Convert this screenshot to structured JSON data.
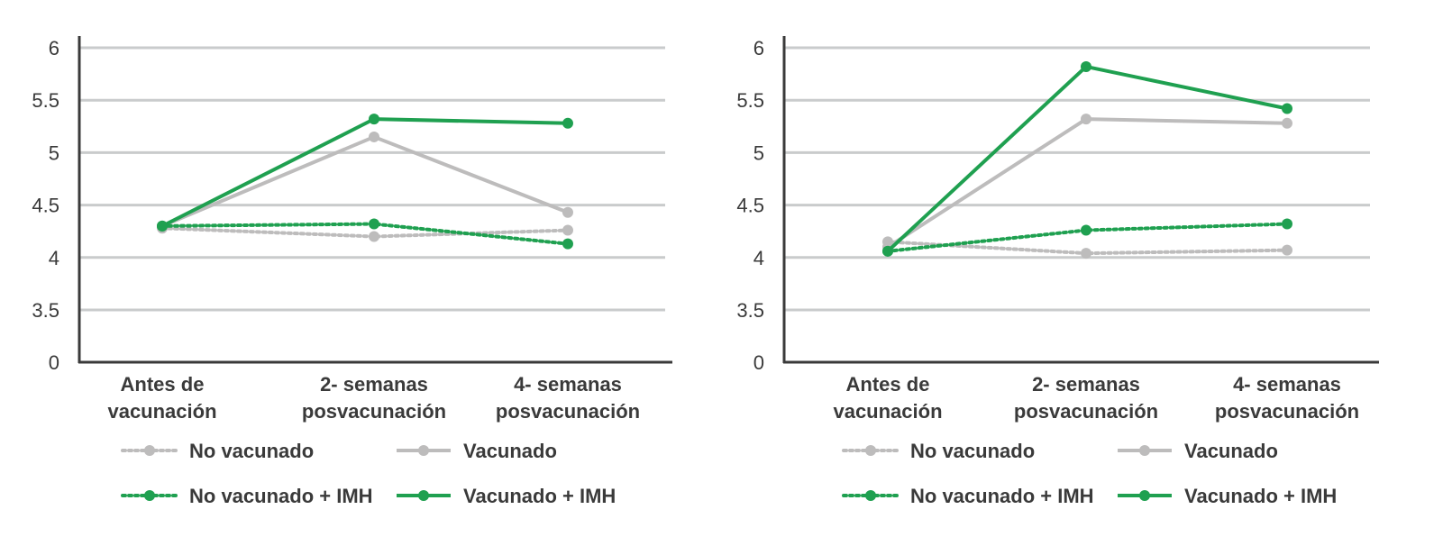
{
  "colors": {
    "gray": "#bdbcbc",
    "green": "#1fa050",
    "axis": "#3a3a3a",
    "grid": "#c9cbcc",
    "text": "#3a3a3a"
  },
  "chart_data": [
    {
      "type": "line",
      "categories": [
        [
          "Antes de",
          "vacunación"
        ],
        [
          "2- semanas",
          "posvacunación"
        ],
        [
          "4- semanas",
          "posvacunación"
        ]
      ],
      "y_ticks": [
        "0",
        "3.5",
        "4",
        "4.5",
        "5",
        "5.5",
        "6"
      ],
      "y_scale": "broken: 0, then 3.5 to 6 in steps of 0.5",
      "grid": true,
      "legend_position": "bottom",
      "series": [
        {
          "name": "No vacunado",
          "color": "gray",
          "style": "dotted",
          "values": [
            4.28,
            4.2,
            4.26
          ]
        },
        {
          "name": "Vacunado",
          "color": "gray",
          "style": "solid",
          "values": [
            4.3,
            5.15,
            4.43
          ]
        },
        {
          "name": "No vacunado + IMH",
          "color": "green",
          "style": "dotted",
          "values": [
            4.3,
            4.32,
            4.13
          ]
        },
        {
          "name": "Vacunado + IMH",
          "color": "green",
          "style": "solid",
          "values": [
            4.3,
            5.32,
            5.28
          ]
        }
      ]
    },
    {
      "type": "line",
      "categories": [
        [
          "Antes de",
          "vacunación"
        ],
        [
          "2- semanas",
          "posvacunación"
        ],
        [
          "4- semanas",
          "posvacunación"
        ]
      ],
      "y_ticks": [
        "0",
        "3.5",
        "4",
        "4.5",
        "5",
        "5.5",
        "6"
      ],
      "y_scale": "broken: 0, then 3.5 to 6 in steps of 0.5",
      "grid": true,
      "legend_position": "bottom",
      "series": [
        {
          "name": "No vacunado",
          "color": "gray",
          "style": "dotted",
          "values": [
            4.15,
            4.04,
            4.07
          ]
        },
        {
          "name": "Vacunado",
          "color": "gray",
          "style": "solid",
          "values": [
            4.1,
            5.32,
            5.28
          ]
        },
        {
          "name": "No vacunado + IMH",
          "color": "green",
          "style": "dotted",
          "values": [
            4.06,
            4.26,
            4.32
          ]
        },
        {
          "name": "Vacunado + IMH",
          "color": "green",
          "style": "solid",
          "values": [
            4.06,
            5.82,
            5.42
          ]
        }
      ]
    }
  ]
}
